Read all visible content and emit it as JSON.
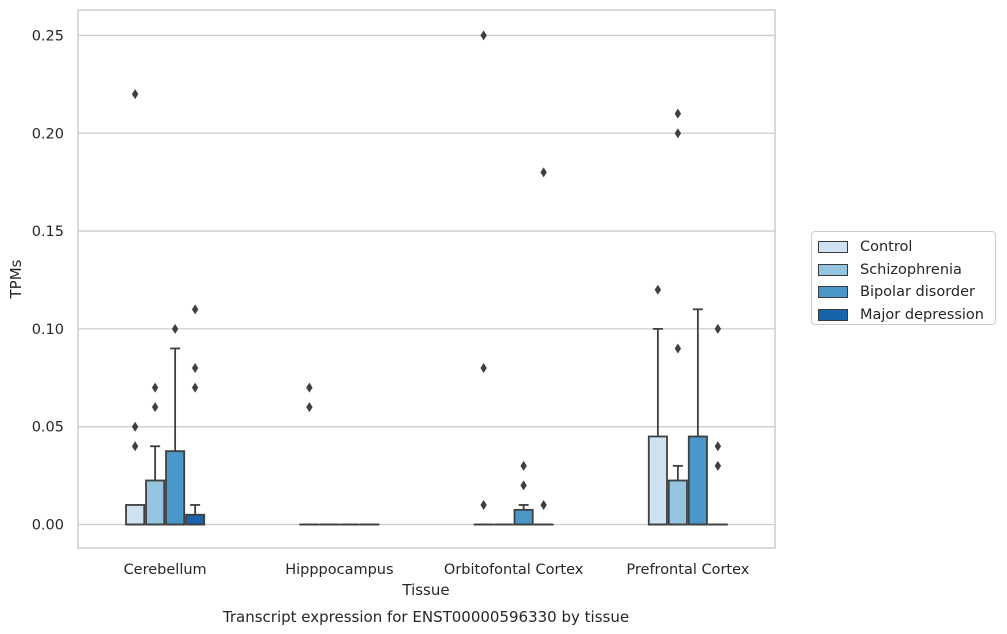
{
  "chart_data": {
    "type": "box",
    "xlabel": "Tissue",
    "ylabel": "TPMs",
    "caption": "Transcript expression for ENST00000596330 by tissue",
    "categories": [
      "Cerebellum",
      "Hipppocampus",
      "Orbitofontal Cortex",
      "Prefrontal Cortex"
    ],
    "ylim": [
      -0.012,
      0.263
    ],
    "yticks": [
      0.0,
      0.05,
      0.1,
      0.15,
      0.2,
      0.25
    ],
    "ytick_labels": [
      "0.00",
      "0.05",
      "0.10",
      "0.15",
      "0.20",
      "0.25"
    ],
    "grid": "horizontal",
    "legend_position": "right",
    "series": [
      {
        "name": "Control",
        "color": "#d0e1f2",
        "boxes": [
          {
            "q1": 0.0,
            "median": 0.0,
            "q3": 0.01,
            "whisker_low": 0.0,
            "whisker_high": 0.01,
            "outliers": [
              0.22,
              0.05,
              0.04
            ]
          },
          {
            "q1": 0.0,
            "median": 0.0,
            "q3": 0.0,
            "whisker_low": 0.0,
            "whisker_high": 0.0,
            "outliers": [
              0.07,
              0.06
            ]
          },
          {
            "q1": 0.0,
            "median": 0.0,
            "q3": 0.0,
            "whisker_low": 0.0,
            "whisker_high": 0.0,
            "outliers": [
              0.25,
              0.08,
              0.01
            ]
          },
          {
            "q1": 0.0,
            "median": 0.0,
            "q3": 0.045,
            "whisker_low": 0.0,
            "whisker_high": 0.1,
            "outliers": [
              0.12
            ]
          }
        ]
      },
      {
        "name": "Schizophrenia",
        "color": "#94c4df",
        "boxes": [
          {
            "q1": 0.0,
            "median": 0.0,
            "q3": 0.0225,
            "whisker_low": 0.0,
            "whisker_high": 0.04,
            "outliers": [
              0.07,
              0.06
            ]
          },
          {
            "q1": 0.0,
            "median": 0.0,
            "q3": 0.0,
            "whisker_low": 0.0,
            "whisker_high": 0.0,
            "outliers": []
          },
          {
            "q1": 0.0,
            "median": 0.0,
            "q3": 0.0,
            "whisker_low": 0.0,
            "whisker_high": 0.0,
            "outliers": []
          },
          {
            "q1": 0.0,
            "median": 0.0,
            "q3": 0.0225,
            "whisker_low": 0.0,
            "whisker_high": 0.03,
            "outliers": [
              0.21,
              0.2,
              0.09
            ]
          }
        ]
      },
      {
        "name": "Bipolar disorder",
        "color": "#4a98c9",
        "boxes": [
          {
            "q1": 0.0,
            "median": 0.0,
            "q3": 0.0375,
            "whisker_low": 0.0,
            "whisker_high": 0.09,
            "outliers": [
              0.1
            ]
          },
          {
            "q1": 0.0,
            "median": 0.0,
            "q3": 0.0,
            "whisker_low": 0.0,
            "whisker_high": 0.0,
            "outliers": []
          },
          {
            "q1": 0.0,
            "median": 0.0,
            "q3": 0.0075,
            "whisker_low": 0.0,
            "whisker_high": 0.01,
            "outliers": [
              0.03,
              0.02
            ]
          },
          {
            "q1": 0.0,
            "median": 0.0,
            "q3": 0.045,
            "whisker_low": 0.0,
            "whisker_high": 0.11,
            "outliers": []
          }
        ]
      },
      {
        "name": "Major depression",
        "color": "#1764ab",
        "boxes": [
          {
            "q1": 0.0,
            "median": 0.0,
            "q3": 0.005,
            "whisker_low": 0.0,
            "whisker_high": 0.01,
            "outliers": [
              0.11,
              0.08,
              0.07
            ]
          },
          {
            "q1": 0.0,
            "median": 0.0,
            "q3": 0.0,
            "whisker_low": 0.0,
            "whisker_high": 0.0,
            "outliers": []
          },
          {
            "q1": 0.0,
            "median": 0.0,
            "q3": 0.0,
            "whisker_low": 0.0,
            "whisker_high": 0.0,
            "outliers": [
              0.18,
              0.01
            ]
          },
          {
            "q1": 0.0,
            "median": 0.0,
            "q3": 0.0,
            "whisker_low": 0.0,
            "whisker_high": 0.0,
            "outliers": [
              0.1,
              0.04,
              0.03
            ]
          }
        ]
      }
    ]
  }
}
